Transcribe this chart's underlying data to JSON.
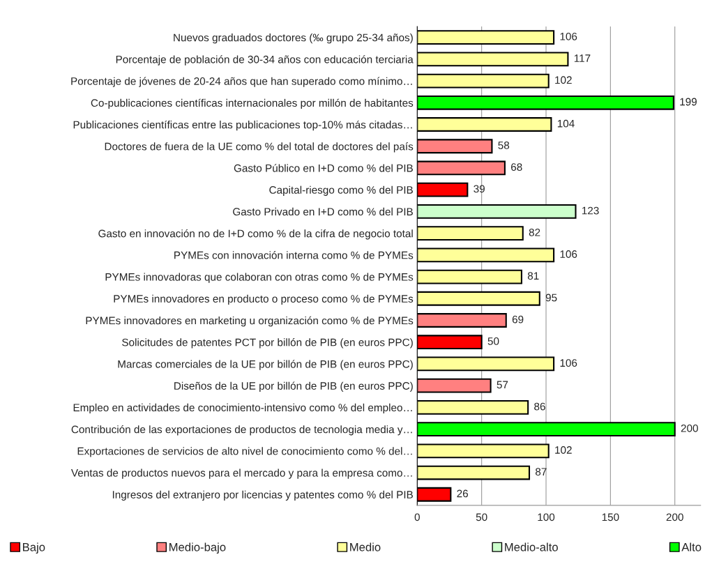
{
  "chart_data": {
    "type": "bar",
    "orientation": "horizontal",
    "data_labels": true,
    "grid": "x",
    "legend": "bottom",
    "categories": [
      "Nuevos graduados doctores (‰ grupo 25-34 años)",
      "Porcentaje de población de 30-34 años con educación terciaria",
      "Porcentaje de jóvenes de 20-24 años que han superado como mínimo…",
      "Co-publicaciones científicas internacionales por millón de habitantes",
      "Publicaciones científicas entre las publicaciones top-10% más citadas…",
      "Doctores de fuera de la UE como % del total de doctores del país",
      "Gasto Público en I+D como % del PIB",
      "Capital-riesgo como % del PIB",
      "Gasto Privado en I+D como % del PIB",
      "Gasto en innovación no de I+D como % de la cifra de negocio total",
      "PYMEs con innovación interna como % de PYMEs",
      "PYMEs innovadoras que colaboran con otras como % de PYMEs",
      "PYMEs innovadores en producto o proceso como % de PYMEs",
      "PYMEs innovadores en marketing u organización como % de PYMEs",
      "Solicitudes de patentes PCT por billón de PIB (en euros PPC)",
      "Marcas comerciales de la UE por billón de PIB (en euros PPC)",
      "Diseños de la UE por billón de PIB (en euros PPC)",
      "Empleo en actividades de conocimiento-intensivo como % del empleo…",
      "Contribución de las exportaciones de productos de tecnologia media y…",
      "Exportaciones de servicios de alto nivel de conocimiento como % del…",
      "Ventas de productos nuevos para el mercado y para la empresa como…",
      "Ingresos del extranjero por licencias y patentes como % del PIB"
    ],
    "series": [
      {
        "name": "Bajo",
        "color": "#ff0000",
        "values": [
          null,
          null,
          null,
          null,
          null,
          null,
          null,
          39,
          null,
          null,
          null,
          null,
          null,
          null,
          50,
          null,
          null,
          null,
          null,
          null,
          null,
          26
        ]
      },
      {
        "name": "Medio-bajo",
        "color": "#ff8080",
        "values": [
          null,
          null,
          null,
          null,
          null,
          58,
          68,
          null,
          null,
          null,
          null,
          null,
          null,
          69,
          null,
          null,
          57,
          null,
          null,
          null,
          null,
          null
        ]
      },
      {
        "name": "Medio",
        "color": "#ffff99",
        "values": [
          106,
          117,
          102,
          null,
          104,
          null,
          null,
          null,
          null,
          82,
          106,
          81,
          95,
          null,
          null,
          106,
          null,
          86,
          null,
          102,
          87,
          null
        ]
      },
      {
        "name": "Medio-alto",
        "color": "#ccffcc",
        "values": [
          null,
          null,
          null,
          null,
          null,
          null,
          null,
          null,
          123,
          null,
          null,
          null,
          null,
          null,
          null,
          null,
          null,
          null,
          null,
          null,
          null,
          null
        ]
      },
      {
        "name": "Alto",
        "color": "#00ff00",
        "values": [
          null,
          null,
          null,
          199,
          null,
          null,
          null,
          null,
          null,
          null,
          null,
          null,
          null,
          null,
          null,
          null,
          null,
          null,
          200,
          null,
          null,
          null
        ]
      }
    ],
    "xlim": [
      0,
      220
    ],
    "xticks": [
      0,
      50,
      100,
      150,
      200
    ]
  }
}
